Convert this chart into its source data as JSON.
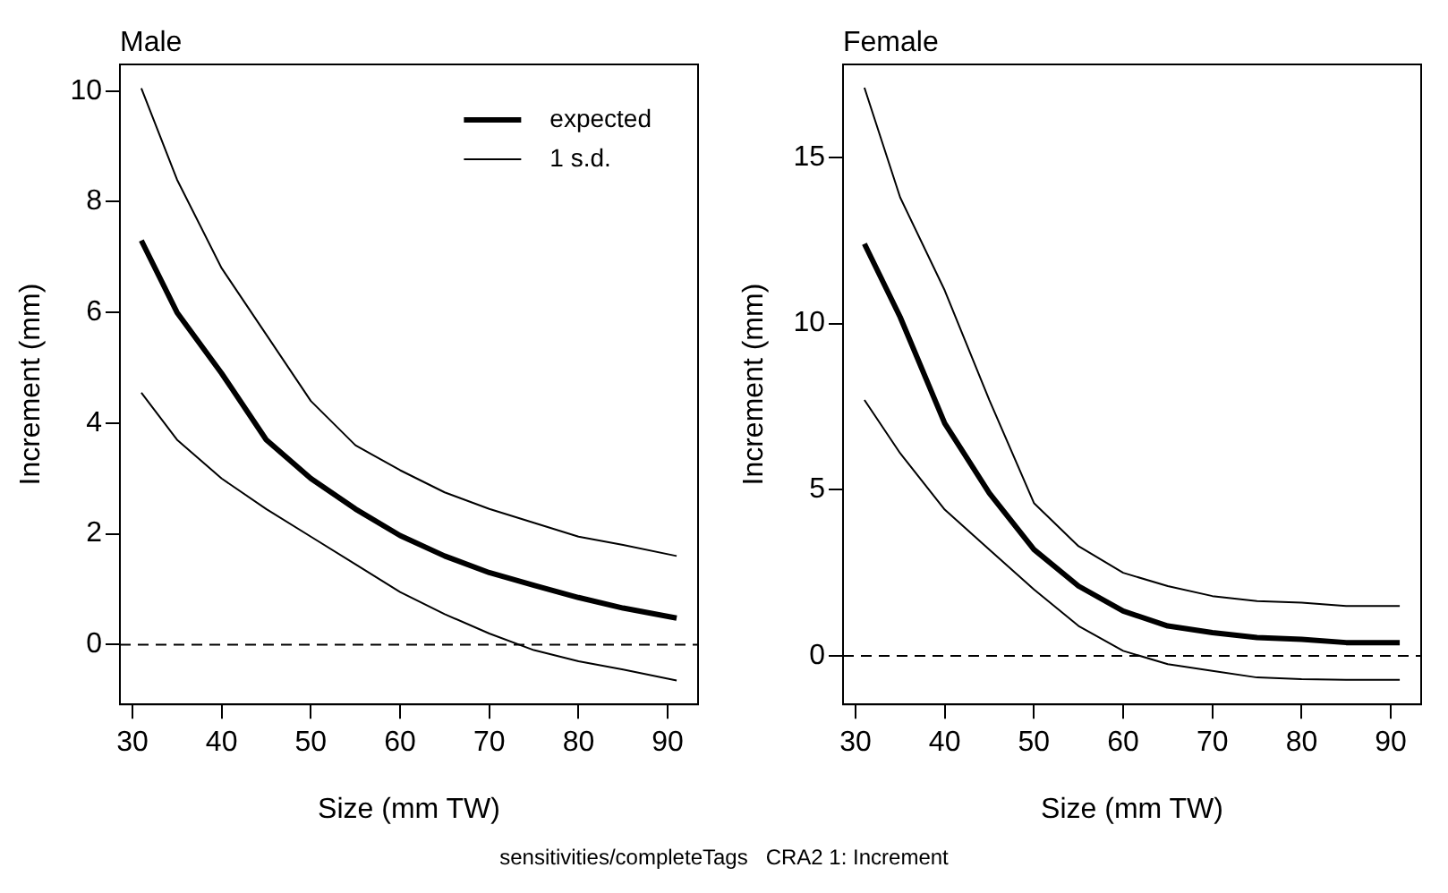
{
  "chart_data": [
    {
      "type": "line",
      "title": "Male",
      "xlabel": "Size (mm TW)",
      "ylabel": "Increment (mm)",
      "x": [
        31,
        35,
        40,
        45,
        50,
        55,
        60,
        65,
        70,
        75,
        80,
        85,
        91
      ],
      "series": [
        {
          "name": "expected",
          "color": "#000000",
          "values": [
            7.3,
            6.0,
            4.9,
            3.7,
            3.0,
            2.45,
            1.97,
            1.6,
            1.3,
            1.07,
            0.85,
            0.66,
            0.48
          ]
        },
        {
          "name": "1 s.d.",
          "color": "#000000",
          "values": [
            10.05,
            8.4,
            6.8,
            5.6,
            4.4,
            3.6,
            3.15,
            2.75,
            2.45,
            2.2,
            1.95,
            1.8,
            1.6
          ]
        },
        {
          "color": "#000000",
          "values": [
            4.55,
            3.7,
            3.0,
            2.45,
            1.95,
            1.45,
            0.95,
            0.55,
            0.2,
            -0.1,
            -0.3,
            -0.45,
            -0.65
          ]
        }
      ],
      "xlim": [
        28.6,
        93.4
      ],
      "xticks": [
        30,
        40,
        50,
        60,
        70,
        80,
        90
      ],
      "ylim": [
        -1.08,
        10.48
      ],
      "yticks": [
        0,
        2,
        4,
        6,
        8,
        10
      ],
      "ref_lines": [
        {
          "axis": "y",
          "value": 0,
          "line_style": "dashed",
          "color": "#000000"
        }
      ],
      "legend": "top right",
      "grid": false,
      "marker": "none",
      "annotations": [
        "sensitivities/completeTags   CRA2 1: Increment"
      ]
    },
    {
      "type": "line",
      "title": "Female",
      "xlabel": "Size (mm TW)",
      "ylabel": "Increment (mm)",
      "x": [
        31,
        35,
        40,
        45,
        50,
        55,
        60,
        65,
        70,
        75,
        80,
        85,
        91
      ],
      "series": [
        {
          "color": "#000000",
          "values": [
            12.4,
            10.2,
            7.0,
            4.9,
            3.2,
            2.1,
            1.35,
            0.9,
            0.7,
            0.55,
            0.5,
            0.4,
            0.4
          ]
        },
        {
          "color": "#000000",
          "values": [
            17.1,
            13.8,
            11.0,
            7.7,
            4.6,
            3.3,
            2.5,
            2.1,
            1.8,
            1.65,
            1.6,
            1.5,
            1.5
          ]
        },
        {
          "color": "#000000",
          "values": [
            7.7,
            6.1,
            4.4,
            3.2,
            2.0,
            0.9,
            0.15,
            -0.25,
            -0.45,
            -0.65,
            -0.7,
            -0.72,
            -0.72
          ]
        }
      ],
      "xlim": [
        28.6,
        93.4
      ],
      "xticks": [
        30,
        40,
        50,
        60,
        70,
        80,
        90
      ],
      "ylim": [
        -1.46,
        17.8
      ],
      "yticks": [
        0,
        5,
        10,
        15
      ],
      "ref_lines": [
        {
          "axis": "y",
          "value": 0,
          "line_style": "dashed",
          "color": "#000000"
        }
      ],
      "legend": false,
      "grid": false,
      "marker": "none"
    }
  ]
}
